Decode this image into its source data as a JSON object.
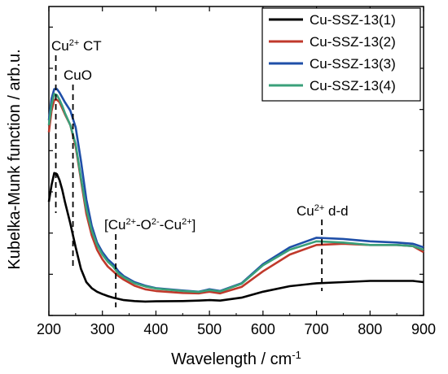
{
  "chart_data": {
    "type": "line",
    "title": "",
    "xlabel": "Wavelength / cm",
    "xlabel_sup": "-1",
    "ylabel": "Kubelka-Munk function / arb.u.",
    "xlim": [
      200,
      900
    ],
    "ylim": [
      0,
      1
    ],
    "x_ticks": [
      "200",
      "300",
      "400",
      "500",
      "600",
      "700",
      "800",
      "900"
    ],
    "y_ticks_labeled": false,
    "legend_position": "top-right",
    "series": [
      {
        "name": "Cu-SSZ-13(1)",
        "color": "#000000",
        "x": [
          200,
          205,
          210,
          215,
          220,
          225,
          230,
          240,
          250,
          260,
          270,
          280,
          290,
          300,
          310,
          320,
          340,
          360,
          380,
          400,
          450,
          480,
          500,
          520,
          560,
          600,
          650,
          700,
          750,
          800,
          850,
          880,
          900
        ],
        "y": [
          0.43,
          0.5,
          0.55,
          0.545,
          0.52,
          0.48,
          0.43,
          0.34,
          0.24,
          0.15,
          0.095,
          0.07,
          0.055,
          0.045,
          0.037,
          0.03,
          0.02,
          0.016,
          0.014,
          0.015,
          0.016,
          0.018,
          0.02,
          0.018,
          0.03,
          0.055,
          0.078,
          0.09,
          0.095,
          0.1,
          0.1,
          0.1,
          0.095
        ]
      },
      {
        "name": "Cu-SSZ-13(2)",
        "color": "#c0392b",
        "x": [
          200,
          205,
          210,
          215,
          220,
          225,
          230,
          240,
          250,
          260,
          270,
          280,
          290,
          300,
          310,
          320,
          330,
          340,
          360,
          380,
          400,
          450,
          480,
          500,
          520,
          560,
          600,
          650,
          700,
          750,
          800,
          850,
          880,
          900
        ],
        "y": [
          0.72,
          0.81,
          0.855,
          0.855,
          0.845,
          0.82,
          0.795,
          0.75,
          0.66,
          0.52,
          0.38,
          0.29,
          0.23,
          0.19,
          0.16,
          0.14,
          0.12,
          0.105,
          0.08,
          0.065,
          0.058,
          0.05,
          0.048,
          0.055,
          0.048,
          0.075,
          0.14,
          0.21,
          0.25,
          0.255,
          0.25,
          0.25,
          0.245,
          0.22
        ]
      },
      {
        "name": "Cu-SSZ-13(3)",
        "color": "#1f4fa8",
        "x": [
          200,
          205,
          210,
          215,
          220,
          225,
          230,
          240,
          250,
          260,
          270,
          280,
          290,
          300,
          310,
          320,
          330,
          340,
          360,
          380,
          400,
          450,
          480,
          500,
          520,
          560,
          600,
          650,
          700,
          750,
          800,
          850,
          880,
          900
        ],
        "y": [
          0.77,
          0.86,
          0.9,
          0.9,
          0.885,
          0.865,
          0.845,
          0.81,
          0.74,
          0.6,
          0.44,
          0.33,
          0.26,
          0.22,
          0.19,
          0.17,
          0.14,
          0.12,
          0.095,
          0.08,
          0.07,
          0.06,
          0.055,
          0.065,
          0.058,
          0.09,
          0.17,
          0.24,
          0.28,
          0.275,
          0.265,
          0.26,
          0.255,
          0.24
        ]
      },
      {
        "name": "Cu-SSZ-13(4)",
        "color": "#3aa07a",
        "x": [
          200,
          205,
          210,
          215,
          220,
          225,
          230,
          240,
          250,
          260,
          270,
          280,
          290,
          300,
          310,
          320,
          330,
          340,
          360,
          380,
          400,
          450,
          480,
          500,
          520,
          560,
          600,
          650,
          700,
          750,
          800,
          850,
          880,
          900
        ],
        "y": [
          0.75,
          0.835,
          0.88,
          0.875,
          0.855,
          0.83,
          0.8,
          0.75,
          0.67,
          0.53,
          0.4,
          0.31,
          0.25,
          0.21,
          0.18,
          0.16,
          0.13,
          0.115,
          0.09,
          0.077,
          0.068,
          0.058,
          0.054,
          0.062,
          0.056,
          0.088,
          0.165,
          0.23,
          0.265,
          0.26,
          0.25,
          0.25,
          0.245,
          0.23
        ]
      }
    ],
    "annotations": [
      {
        "id": "cu-ct",
        "text": "Cu",
        "sup": "2+",
        "suffix": " CT",
        "x": 213
      },
      {
        "id": "cuo",
        "text": "CuO",
        "x": 245
      },
      {
        "id": "oxo",
        "parts": [
          "[Cu",
          "2+",
          "-O",
          "2-",
          "-Cu",
          "2+",
          "]"
        ],
        "x": 325
      },
      {
        "id": "dd",
        "text": "Cu",
        "sup": "2+",
        "suffix": " d-d",
        "x": 710
      }
    ]
  }
}
